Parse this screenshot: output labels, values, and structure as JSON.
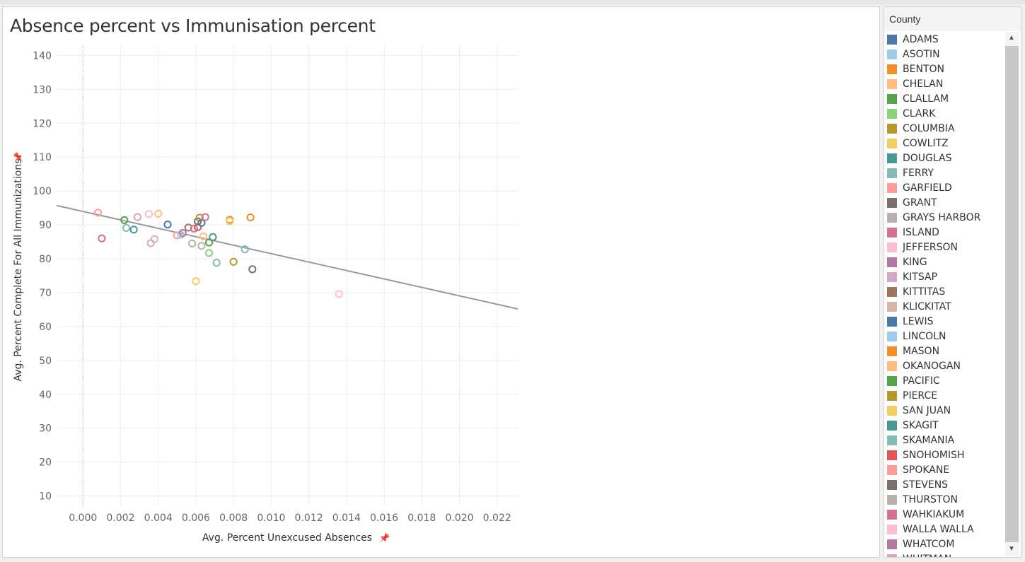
{
  "title": "Absence percent vs Immunisation percent",
  "legend": {
    "title": "County",
    "items": [
      {
        "label": "ADAMS",
        "color": "#4e79a7"
      },
      {
        "label": "ASOTIN",
        "color": "#a0cbe8"
      },
      {
        "label": "BENTON",
        "color": "#f28e2b"
      },
      {
        "label": "CHELAN",
        "color": "#ffbe7d"
      },
      {
        "label": "CLALLAM",
        "color": "#59a14f"
      },
      {
        "label": "CLARK",
        "color": "#8cd17d"
      },
      {
        "label": "COLUMBIA",
        "color": "#b6992d"
      },
      {
        "label": "COWLITZ",
        "color": "#f1ce63"
      },
      {
        "label": "DOUGLAS",
        "color": "#499894"
      },
      {
        "label": "FERRY",
        "color": "#86bcb6"
      },
      {
        "label": "GARFIELD",
        "color": "#ff9d9a"
      },
      {
        "label": "GRANT",
        "color": "#79706e"
      },
      {
        "label": "GRAYS HARBOR",
        "color": "#bab0ac"
      },
      {
        "label": "ISLAND",
        "color": "#d37295"
      },
      {
        "label": "JEFFERSON",
        "color": "#fabfd2"
      },
      {
        "label": "KING",
        "color": "#b07aa1"
      },
      {
        "label": "KITSAP",
        "color": "#d4a6c8"
      },
      {
        "label": "KITTITAS",
        "color": "#9d7660"
      },
      {
        "label": "KLICKITAT",
        "color": "#d7b5a6"
      },
      {
        "label": "LEWIS",
        "color": "#4e79a7"
      },
      {
        "label": "LINCOLN",
        "color": "#a0cbe8"
      },
      {
        "label": "MASON",
        "color": "#f28e2b"
      },
      {
        "label": "OKANOGAN",
        "color": "#ffbe7d"
      },
      {
        "label": "PACIFIC",
        "color": "#59a14f"
      },
      {
        "label": "PIERCE",
        "color": "#b6992d"
      },
      {
        "label": "SAN JUAN",
        "color": "#f1ce63"
      },
      {
        "label": "SKAGIT",
        "color": "#499894"
      },
      {
        "label": "SKAMANIA",
        "color": "#86bcb6"
      },
      {
        "label": "SNOHOMISH",
        "color": "#e15759"
      },
      {
        "label": "SPOKANE",
        "color": "#ff9d9a"
      },
      {
        "label": "STEVENS",
        "color": "#79706e"
      },
      {
        "label": "THURSTON",
        "color": "#bab0ac"
      },
      {
        "label": "WAHKIAKUM",
        "color": "#d37295"
      },
      {
        "label": "WALLA WALLA",
        "color": "#fabfd2"
      },
      {
        "label": "WHATCOM",
        "color": "#b07aa1"
      },
      {
        "label": "WHITMAN",
        "color": "#d4a6c8"
      }
    ]
  },
  "chart_data": {
    "type": "scatter",
    "xlabel": "Avg. Percent Unexcused Absences",
    "ylabel": "Avg. Percent Complete For All Immunizations",
    "xlim": [
      -0.0014,
      0.0231
    ],
    "ylim": [
      7,
      143
    ],
    "xticks": [
      "0.000",
      "0.002",
      "0.004",
      "0.006",
      "0.008",
      "0.010",
      "0.012",
      "0.014",
      "0.016",
      "0.018",
      "0.020",
      "0.022"
    ],
    "xtick_values": [
      0,
      0.002,
      0.004,
      0.006,
      0.008,
      0.01,
      0.012,
      0.014,
      0.016,
      0.018,
      0.02,
      0.022
    ],
    "yticks": [
      "10",
      "20",
      "30",
      "40",
      "50",
      "60",
      "70",
      "80",
      "90",
      "100",
      "110",
      "120",
      "130",
      "140"
    ],
    "ytick_values": [
      10,
      20,
      30,
      40,
      50,
      60,
      70,
      80,
      90,
      100,
      110,
      120,
      130,
      140
    ],
    "grid": true,
    "zero_line_x": 0,
    "trend_line": {
      "x": [
        -0.0014,
        0.0231
      ],
      "y": [
        95.7,
        65.2
      ],
      "color": "#999999"
    },
    "points": [
      {
        "x": 0.0008,
        "y": 93.6,
        "color": "#ff9d9a"
      },
      {
        "x": 0.001,
        "y": 86.0,
        "color": "#d37295"
      },
      {
        "x": 0.0022,
        "y": 91.4,
        "color": "#59a14f"
      },
      {
        "x": 0.0023,
        "y": 89.1,
        "color": "#86bcb6"
      },
      {
        "x": 0.0027,
        "y": 88.6,
        "color": "#499894"
      },
      {
        "x": 0.0029,
        "y": 92.3,
        "color": "#d4a6c8"
      },
      {
        "x": 0.0035,
        "y": 93.2,
        "color": "#fabfd2"
      },
      {
        "x": 0.0036,
        "y": 84.6,
        "color": "#d4a6c8"
      },
      {
        "x": 0.0038,
        "y": 85.8,
        "color": "#d7b5a6"
      },
      {
        "x": 0.004,
        "y": 93.3,
        "color": "#ffbe7d"
      },
      {
        "x": 0.0045,
        "y": 90.1,
        "color": "#4e79a7"
      },
      {
        "x": 0.005,
        "y": 86.9,
        "color": "#ff9d9a"
      },
      {
        "x": 0.0052,
        "y": 87.1,
        "color": "#a0cbe8"
      },
      {
        "x": 0.0053,
        "y": 87.6,
        "color": "#b07aa1"
      },
      {
        "x": 0.0056,
        "y": 89.2,
        "color": "#9d7660"
      },
      {
        "x": 0.0058,
        "y": 84.5,
        "color": "#bab0ac"
      },
      {
        "x": 0.0059,
        "y": 88.9,
        "color": "#d37295"
      },
      {
        "x": 0.006,
        "y": 73.4,
        "color": "#f1ce63"
      },
      {
        "x": 0.0061,
        "y": 89.3,
        "color": "#e15759"
      },
      {
        "x": 0.0061,
        "y": 91.0,
        "color": "#79706e"
      },
      {
        "x": 0.0062,
        "y": 92.1,
        "color": "#b6992d"
      },
      {
        "x": 0.0063,
        "y": 90.6,
        "color": "#4e79a7"
      },
      {
        "x": 0.0063,
        "y": 83.8,
        "color": "#bab0ac"
      },
      {
        "x": 0.0064,
        "y": 86.6,
        "color": "#ffbe7d"
      },
      {
        "x": 0.0065,
        "y": 92.3,
        "color": "#d37295"
      },
      {
        "x": 0.0067,
        "y": 84.8,
        "color": "#59a14f"
      },
      {
        "x": 0.0067,
        "y": 81.7,
        "color": "#8cd17d"
      },
      {
        "x": 0.0069,
        "y": 86.4,
        "color": "#499894"
      },
      {
        "x": 0.0071,
        "y": 78.8,
        "color": "#86bcb6"
      },
      {
        "x": 0.0078,
        "y": 91.5,
        "color": "#f28e2b"
      },
      {
        "x": 0.0078,
        "y": 91.1,
        "color": "#f1ce63"
      },
      {
        "x": 0.008,
        "y": 79.1,
        "color": "#b6992d"
      },
      {
        "x": 0.0086,
        "y": 82.8,
        "color": "#86bcb6"
      },
      {
        "x": 0.0089,
        "y": 92.2,
        "color": "#f28e2b"
      },
      {
        "x": 0.009,
        "y": 76.9,
        "color": "#79706e"
      },
      {
        "x": 0.0136,
        "y": 69.6,
        "color": "#fabfd2"
      }
    ]
  }
}
